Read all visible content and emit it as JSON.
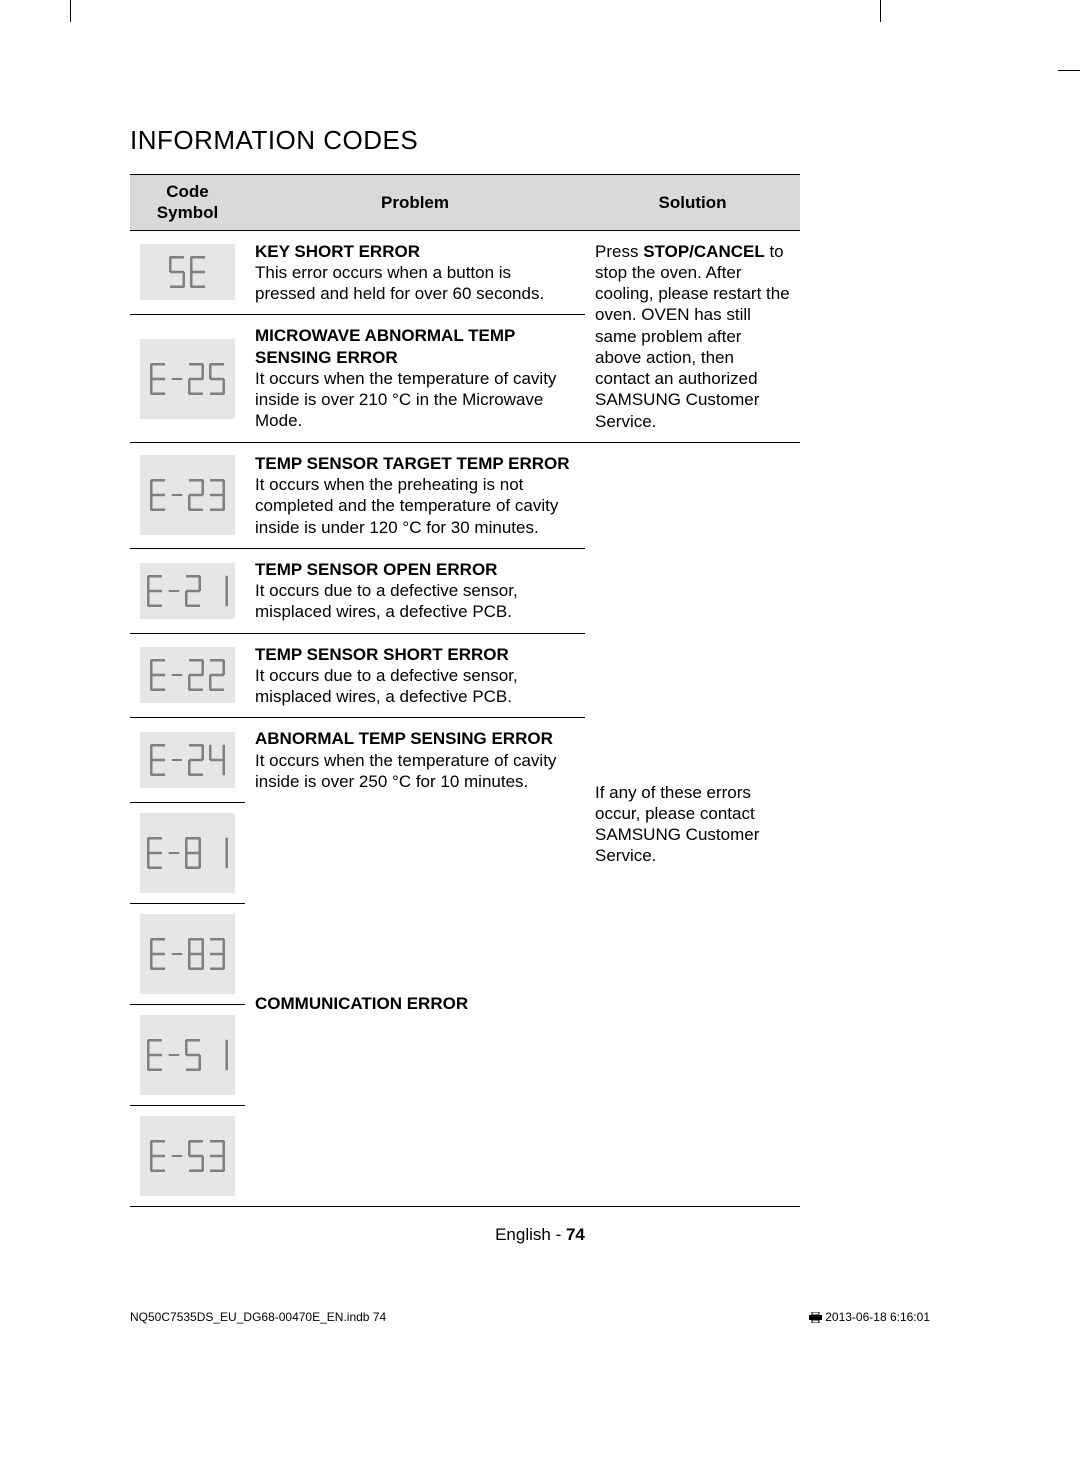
{
  "title": "INFORMATION CODES",
  "headers": {
    "code": "Code Symbol",
    "problem": "Problem",
    "solution": "Solution"
  },
  "rows": [
    {
      "code": "5E",
      "problem_title": "KEY SHORT ERROR",
      "problem_body": "This error occurs when a button is pressed and held for over 60 seconds."
    },
    {
      "code": "E-25",
      "problem_title": "MICROWAVE ABNORMAL TEMP SENSING ERROR",
      "problem_body": "It occurs when the temperature of cavity inside is over 210 °C in the Microwave Mode."
    },
    {
      "code": "E-23",
      "problem_title": "TEMP SENSOR TARGET TEMP ERROR",
      "problem_body": "It occurs when the preheating is not completed and the temperature of cavity inside is under 120 °C for 30 minutes."
    },
    {
      "code": "E-21",
      "problem_title": "TEMP SENSOR OPEN ERROR",
      "problem_body": "It occurs due to a defective sensor, misplaced wires, a defective PCB."
    },
    {
      "code": "E-22",
      "problem_title": "TEMP SENSOR SHORT ERROR",
      "problem_body": "It occurs due to a defective sensor, misplaced wires, a defective PCB."
    },
    {
      "code": "E-24",
      "problem_title": "ABNORMAL TEMP SENSING ERROR",
      "problem_body": "It occurs when the temperature of cavity inside is over 250 °C for 10 minutes."
    },
    {
      "code": "E-81"
    },
    {
      "code": "E-83"
    },
    {
      "code": "E-51"
    },
    {
      "code": "E-53"
    }
  ],
  "comm_error_title": "COMMUNICATION ERROR",
  "solution1_pre": "Press ",
  "solution1_bold": "STOP/CANCEL",
  "solution1_post": " to stop the oven. After cooling, please restart the oven.\nOVEN has still same problem after above action, then contact an authorized SAMSUNG Customer Service.",
  "solution2": "If any of these errors occur, please contact SAMSUNG Customer Service.",
  "footer_center_pre": "English - ",
  "footer_center_page": "74",
  "footer_left": "NQ50C7535DS_EU_DG68-00470E_EN.indb   74",
  "footer_right": "2013-06-18    6:16:01",
  "colors": {
    "header_bg": "#d9d9d9",
    "symbol_bg": "#e6e6e6",
    "border": "#000000",
    "text": "#000000",
    "segment": "#7f7f7f"
  },
  "digit_segments": {
    "0": [
      1,
      1,
      1,
      0,
      1,
      1,
      1
    ],
    "1": [
      0,
      0,
      1,
      0,
      0,
      1,
      0
    ],
    "2": [
      1,
      0,
      1,
      1,
      1,
      0,
      1
    ],
    "3": [
      1,
      0,
      1,
      1,
      0,
      1,
      1
    ],
    "4": [
      0,
      1,
      1,
      1,
      0,
      1,
      0
    ],
    "5": [
      1,
      1,
      0,
      1,
      0,
      1,
      1
    ],
    "6": [
      1,
      1,
      0,
      1,
      1,
      1,
      1
    ],
    "7": [
      1,
      0,
      1,
      0,
      0,
      1,
      0
    ],
    "8": [
      1,
      1,
      1,
      1,
      1,
      1,
      1
    ],
    "9": [
      1,
      1,
      1,
      1,
      0,
      1,
      1
    ],
    "E": [
      1,
      1,
      0,
      1,
      1,
      0,
      1
    ],
    "-": [
      0,
      0,
      0,
      1,
      0,
      0,
      0
    ],
    " ": [
      0,
      0,
      0,
      0,
      0,
      0,
      0
    ]
  }
}
